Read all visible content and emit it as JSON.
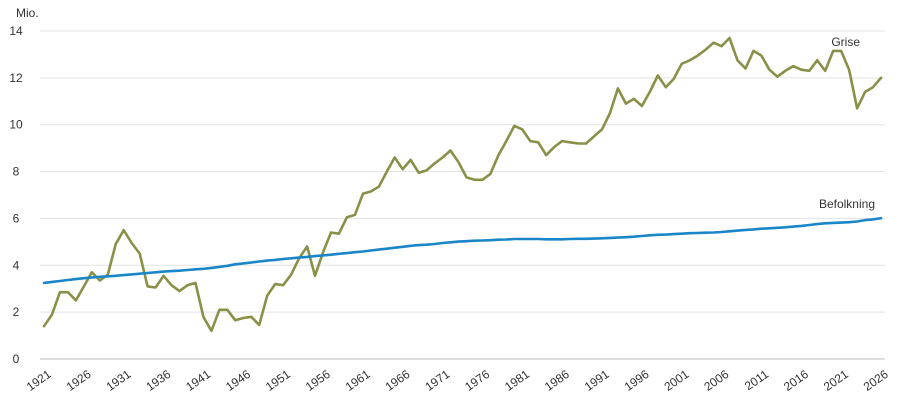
{
  "chart_data": {
    "type": "line",
    "y_unit": "Mio.",
    "ylim": [
      0,
      14
    ],
    "xlim": [
      1921,
      2026
    ],
    "y_ticks": [
      0,
      2,
      4,
      6,
      8,
      10,
      12,
      14
    ],
    "x_ticks": [
      1921,
      1926,
      1931,
      1936,
      1941,
      1946,
      1951,
      1956,
      1961,
      1966,
      1971,
      1976,
      1981,
      1986,
      1991,
      1996,
      2001,
      2006,
      2011,
      2016,
      2021,
      2026
    ],
    "grid": true,
    "x": [
      1921,
      1922,
      1923,
      1924,
      1925,
      1926,
      1927,
      1928,
      1929,
      1930,
      1931,
      1932,
      1933,
      1934,
      1935,
      1936,
      1937,
      1938,
      1939,
      1940,
      1941,
      1942,
      1943,
      1944,
      1945,
      1946,
      1947,
      1948,
      1949,
      1950,
      1951,
      1952,
      1953,
      1954,
      1955,
      1956,
      1957,
      1958,
      1959,
      1960,
      1961,
      1962,
      1963,
      1964,
      1965,
      1966,
      1967,
      1968,
      1969,
      1970,
      1971,
      1972,
      1973,
      1974,
      1975,
      1976,
      1977,
      1978,
      1979,
      1980,
      1981,
      1982,
      1983,
      1984,
      1985,
      1986,
      1987,
      1988,
      1989,
      1990,
      1991,
      1992,
      1993,
      1994,
      1995,
      1996,
      1997,
      1998,
      1999,
      2000,
      2001,
      2002,
      2003,
      2004,
      2005,
      2006,
      2007,
      2008,
      2009,
      2010,
      2011,
      2012,
      2013,
      2014,
      2015,
      2016,
      2017,
      2018,
      2019,
      2020,
      2021,
      2022,
      2023,
      2024,
      2025,
      2026
    ],
    "series": [
      {
        "name": "Grise",
        "color": "#8a9048",
        "values": [
          1.4,
          1.9,
          2.85,
          2.85,
          2.5,
          3.1,
          3.7,
          3.35,
          3.6,
          4.9,
          5.5,
          4.95,
          4.5,
          3.1,
          3.05,
          3.55,
          3.15,
          2.9,
          3.15,
          3.25,
          1.8,
          1.2,
          2.1,
          2.1,
          1.65,
          1.75,
          1.8,
          1.45,
          2.7,
          3.2,
          3.15,
          3.6,
          4.3,
          4.8,
          3.55,
          4.55,
          5.4,
          5.35,
          6.05,
          6.15,
          7.05,
          7.15,
          7.35,
          8.0,
          8.6,
          8.1,
          8.5,
          7.95,
          8.05,
          8.35,
          8.6,
          8.9,
          8.4,
          7.75,
          7.65,
          7.65,
          7.9,
          8.7,
          9.3,
          9.95,
          9.8,
          9.3,
          9.25,
          8.7,
          9.05,
          9.3,
          9.25,
          9.2,
          9.2,
          9.5,
          9.8,
          10.5,
          11.55,
          10.9,
          11.1,
          10.8,
          11.4,
          12.1,
          11.6,
          11.95,
          12.6,
          12.75,
          12.95,
          13.2,
          13.5,
          13.35,
          13.7,
          12.75,
          12.4,
          13.15,
          12.95,
          12.35,
          12.05,
          12.3,
          12.5,
          12.35,
          12.3,
          12.75,
          12.3,
          13.15,
          13.15,
          12.35,
          10.7,
          11.4,
          11.6,
          12.0
        ]
      },
      {
        "name": "Befolkning",
        "color": "#1a86c8",
        "values": [
          3.25,
          3.29,
          3.33,
          3.37,
          3.41,
          3.45,
          3.48,
          3.51,
          3.53,
          3.55,
          3.58,
          3.61,
          3.64,
          3.67,
          3.7,
          3.73,
          3.75,
          3.77,
          3.8,
          3.83,
          3.85,
          3.89,
          3.93,
          3.98,
          4.04,
          4.08,
          4.12,
          4.16,
          4.2,
          4.23,
          4.27,
          4.3,
          4.33,
          4.36,
          4.39,
          4.42,
          4.45,
          4.49,
          4.52,
          4.56,
          4.59,
          4.63,
          4.67,
          4.71,
          4.75,
          4.79,
          4.83,
          4.86,
          4.88,
          4.91,
          4.95,
          4.98,
          5.01,
          5.03,
          5.05,
          5.06,
          5.07,
          5.09,
          5.1,
          5.12,
          5.12,
          5.12,
          5.12,
          5.11,
          5.11,
          5.11,
          5.12,
          5.13,
          5.13,
          5.14,
          5.15,
          5.17,
          5.18,
          5.2,
          5.22,
          5.25,
          5.28,
          5.3,
          5.31,
          5.33,
          5.35,
          5.37,
          5.38,
          5.39,
          5.4,
          5.42,
          5.45,
          5.48,
          5.51,
          5.53,
          5.56,
          5.58,
          5.6,
          5.62,
          5.65,
          5.68,
          5.72,
          5.76,
          5.79,
          5.81,
          5.82,
          5.84,
          5.87,
          5.93,
          5.96,
          6.01
        ]
      }
    ]
  }
}
